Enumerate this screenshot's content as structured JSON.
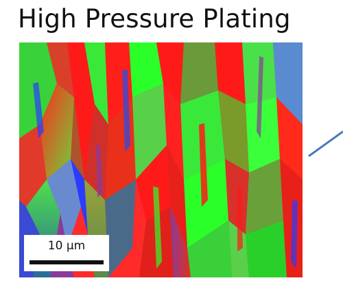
{
  "figure": {
    "title": "High Pressure Plating",
    "scale_bar": {
      "label": "10 μm"
    }
  },
  "colors": {
    "grain_red": "#ff1a1a",
    "grain_green": "#33ff33",
    "grain_olive": "#7f9a3a",
    "grain_blue": "#2a3cff",
    "grain_purple": "#8a3a9a",
    "pointer_line": "#4a7ab8",
    "background": "#ffffff"
  }
}
